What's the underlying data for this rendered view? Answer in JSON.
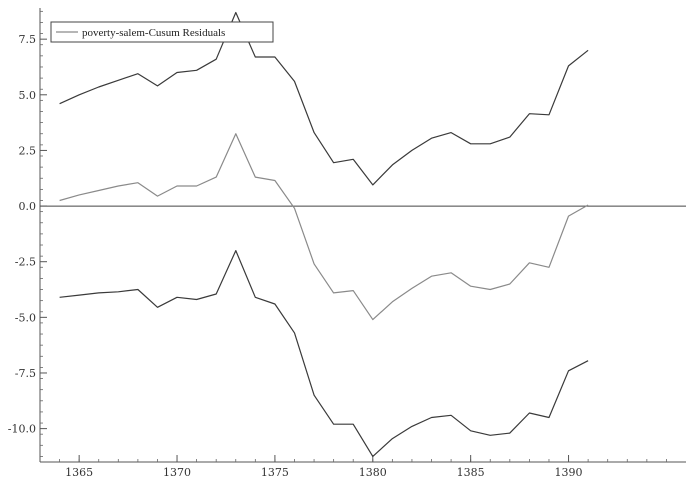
{
  "chart_data": {
    "type": "line",
    "title": "",
    "xlabel": "",
    "ylabel": "",
    "xlim": [
      1363,
      1396
    ],
    "ylim": [
      -11.5,
      8.9
    ],
    "x_ticks": [
      1365,
      1370,
      1375,
      1380,
      1385,
      1390
    ],
    "x_tick_labels": [
      "1365",
      "1370",
      "1375",
      "1380",
      "1385",
      "1390"
    ],
    "y_ticks": [
      7.5,
      5.0,
      2.5,
      0.0,
      -2.5,
      -5.0,
      -7.5,
      -10.0
    ],
    "y_tick_labels": [
      "7.5",
      "5.0",
      "2.5",
      "0.0",
      "-2.5",
      "-5.0",
      "-7.5",
      "-10.0"
    ],
    "reference_line_y": 0,
    "grid": false,
    "legend_position": "top-left",
    "legend_entries": [
      "poverty-salem-Cusum Residuals"
    ],
    "x": [
      1364,
      1365,
      1366,
      1367,
      1368,
      1369,
      1370,
      1371,
      1372,
      1373,
      1374,
      1375,
      1376,
      1377,
      1378,
      1379,
      1380,
      1381,
      1382,
      1383,
      1384,
      1385,
      1386,
      1387,
      1388,
      1389,
      1390,
      1391
    ],
    "series": [
      {
        "name": "poverty-salem-Cusum Residuals",
        "color": "#8a8a8a",
        "values": [
          0.25,
          0.5,
          0.7,
          0.9,
          1.05,
          0.45,
          0.9,
          0.9,
          1.3,
          3.25,
          1.3,
          1.15,
          -0.1,
          -2.6,
          -3.9,
          -3.8,
          -5.1,
          -4.3,
          -3.7,
          -3.15,
          -3.0,
          -3.6,
          -3.75,
          -3.5,
          -2.55,
          -2.75,
          -0.45,
          0.05
        ]
      },
      {
        "name": "",
        "color": "#3a3a3a",
        "values": [
          4.6,
          5.0,
          5.35,
          5.65,
          5.95,
          5.4,
          6.0,
          6.1,
          6.6,
          8.7,
          6.7,
          6.7,
          5.6,
          3.3,
          1.95,
          2.1,
          0.95,
          1.85,
          2.5,
          3.05,
          3.3,
          2.8,
          2.8,
          3.1,
          4.15,
          4.1,
          6.3,
          7.0
        ]
      },
      {
        "name": "",
        "color": "#3a3a3a",
        "values": [
          -4.1,
          -4.0,
          -3.9,
          -3.85,
          -3.75,
          -4.55,
          -4.1,
          -4.2,
          -3.95,
          -2.0,
          -4.1,
          -4.4,
          -5.7,
          -8.5,
          -9.8,
          -9.8,
          -11.25,
          -10.45,
          -9.9,
          -9.5,
          -9.4,
          -10.1,
          -10.3,
          -10.2,
          -9.3,
          -9.5,
          -7.4,
          -6.95
        ]
      }
    ]
  }
}
